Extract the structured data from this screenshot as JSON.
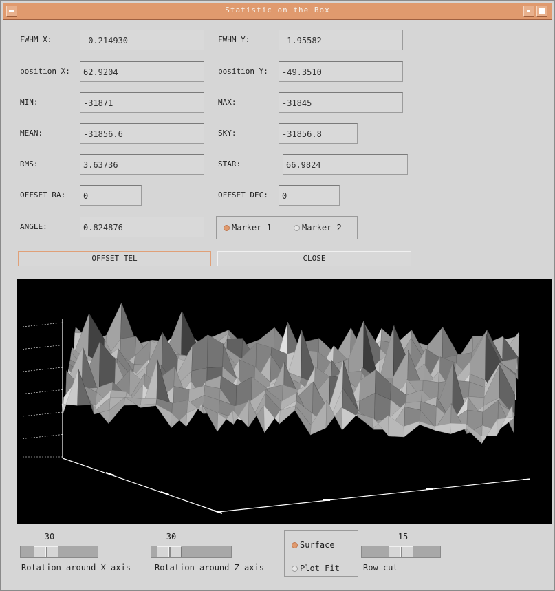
{
  "window": {
    "title": "Statistic on the Box"
  },
  "stats": {
    "fwhm_x": {
      "label": "FWHM X:",
      "value": "-0.214930"
    },
    "fwhm_y": {
      "label": "FWHM Y:",
      "value": "-1.95582"
    },
    "position_x": {
      "label": "position X:",
      "value": "62.9204"
    },
    "position_y": {
      "label": "position Y:",
      "value": "-49.3510"
    },
    "min": {
      "label": "MIN:",
      "value": "-31871"
    },
    "max": {
      "label": "MAX:",
      "value": "-31845"
    },
    "mean": {
      "label": "MEAN:",
      "value": "-31856.6"
    },
    "sky": {
      "label": "SKY:",
      "value": "-31856.8"
    },
    "rms": {
      "label": "RMS:",
      "value": "3.63736"
    },
    "star": {
      "label": "STAR:",
      "value": "66.9824"
    },
    "offset_ra": {
      "label": "OFFSET RA:",
      "value": "0"
    },
    "offset_dec": {
      "label": "OFFSET DEC:",
      "value": "0"
    },
    "angle": {
      "label": "ANGLE:",
      "value": "0.824876"
    }
  },
  "markers": {
    "marker1": "Marker 1",
    "marker2": "Marker 2",
    "selected": "marker1"
  },
  "buttons": {
    "offset_tel": "OFFSET TEL",
    "close": "CLOSE"
  },
  "controls": {
    "rot_x": {
      "value": "30",
      "label": "Rotation around X axis",
      "position": 0.25
    },
    "rot_z": {
      "value": "30",
      "label": "Rotation around Z axis",
      "position": 0.1
    },
    "mode": {
      "surface": "Surface",
      "plot_fit": "Plot Fit",
      "selected": "surface"
    },
    "row_cut": {
      "value": "15",
      "label": "Row cut",
      "position": 0.5
    }
  },
  "colors": {
    "titlebar": "#e09a6e",
    "plot_bg": "#000000",
    "selected_radio": "#e09a6e"
  }
}
